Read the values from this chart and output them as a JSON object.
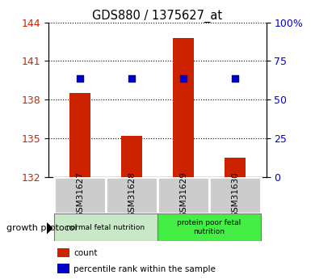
{
  "title": "GDS880 / 1375627_at",
  "samples": [
    "GSM31627",
    "GSM31628",
    "GSM31629",
    "GSM31630"
  ],
  "bar_values": [
    138.5,
    135.2,
    142.8,
    133.5
  ],
  "bar_base": 132,
  "percentile_values": [
    63.5,
    63.5,
    64.0,
    63.5
  ],
  "ylim_left": [
    132,
    144
  ],
  "ylim_right": [
    0,
    100
  ],
  "yticks_left": [
    132,
    135,
    138,
    141,
    144
  ],
  "yticks_right": [
    0,
    25,
    50,
    75,
    100
  ],
  "bar_color": "#cc2200",
  "dot_color": "#0000cc",
  "groups": [
    {
      "label": "normal fetal nutrition",
      "indices": [
        0,
        1
      ],
      "color": "#c8e8c8"
    },
    {
      "label": "protein poor fetal\nnutrition",
      "indices": [
        2,
        3
      ],
      "color": "#44ee44"
    }
  ],
  "group_label": "growth protocol",
  "legend_items": [
    {
      "color": "#cc2200",
      "marker": "s",
      "label": "count"
    },
    {
      "color": "#0000cc",
      "marker": "s",
      "label": "percentile rank within the sample"
    }
  ],
  "bg_color": "#ffffff",
  "tick_label_color_left": "#cc2200",
  "tick_label_color_right": "#0000cc",
  "bar_width": 0.4,
  "figsize": [
    3.9,
    3.45
  ],
  "dpi": 100
}
